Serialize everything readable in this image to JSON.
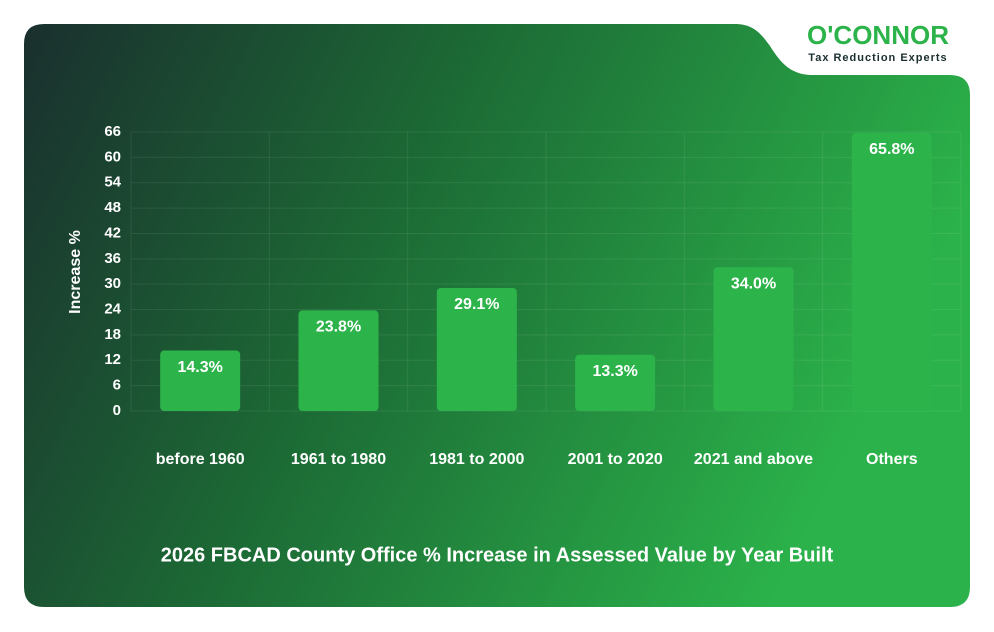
{
  "brand": {
    "name": "O'CONNOR",
    "tagline": "Tax Reduction Experts"
  },
  "chart_data": {
    "type": "bar",
    "title": "2026 FBCAD County Office % Increase in Assessed Value by Year Built",
    "y_label": "Increase %",
    "categories": [
      "before 1960",
      "1961 to 1980",
      "1981 to 2000",
      "2001 to 2020",
      "2021 and above",
      "Others"
    ],
    "values": [
      14.3,
      23.8,
      29.1,
      13.3,
      34.0,
      65.8
    ],
    "value_labels": [
      "14.3%",
      "23.8%",
      "29.1%",
      "13.3%",
      "34.0%",
      "65.8%"
    ],
    "color": "#2cb34a",
    "ylim": [
      0,
      66
    ],
    "yticks": [
      0,
      6,
      12,
      18,
      24,
      30,
      36,
      42,
      48,
      54,
      60,
      66
    ],
    "grid": true
  }
}
